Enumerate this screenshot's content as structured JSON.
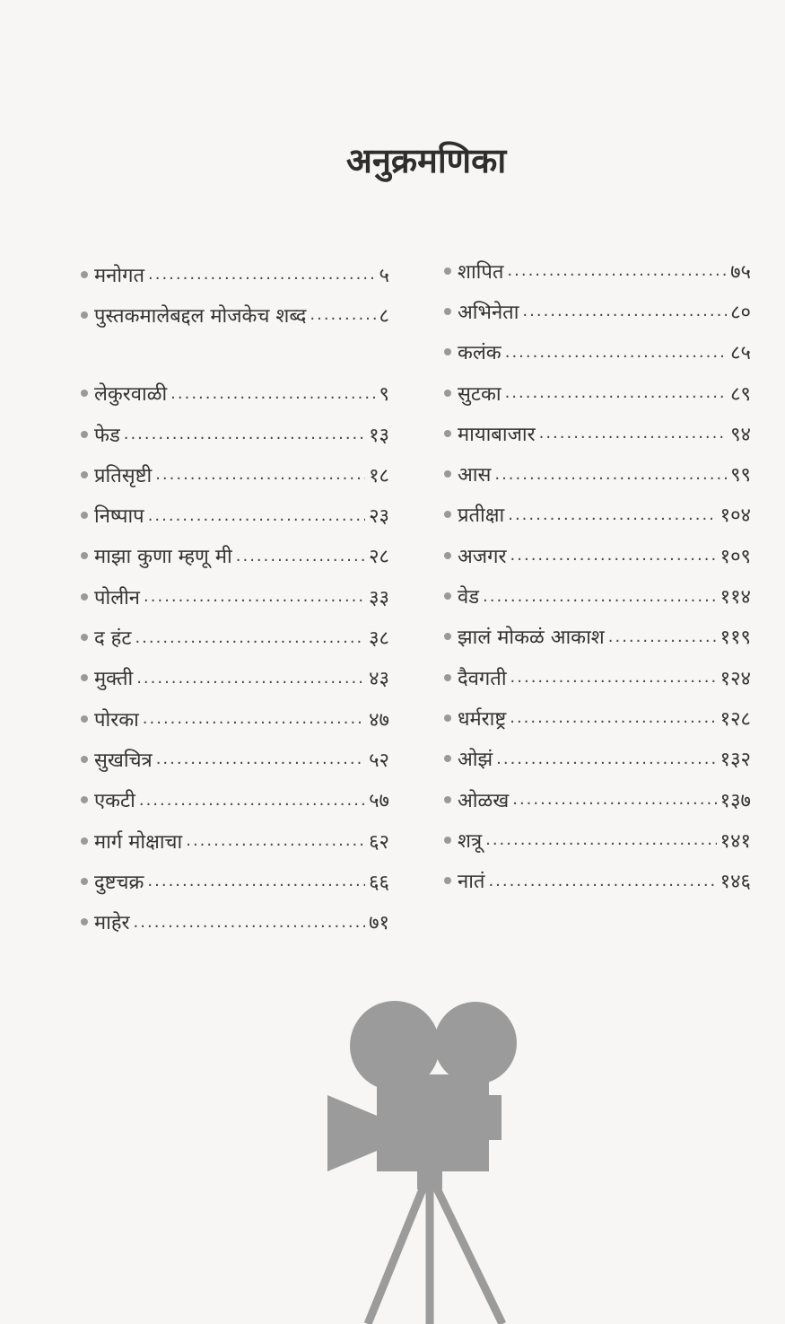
{
  "title": "अनुक्रमणिका",
  "left_column": [
    {
      "label": "मनोगत",
      "page": "५"
    },
    {
      "label": "पुस्तकमालेबद्दल मोजकेच शब्द",
      "page": "८"
    },
    {
      "label": "लेकुरवाळी",
      "page": "९"
    },
    {
      "label": "फेड",
      "page": "१३"
    },
    {
      "label": "प्रतिसृष्टी",
      "page": "१८"
    },
    {
      "label": "निष्पाप",
      "page": "२३"
    },
    {
      "label": "माझा कुणा म्हणू मी",
      "page": "२८"
    },
    {
      "label": "पोलीन",
      "page": "३३"
    },
    {
      "label": "द हंट",
      "page": "३८"
    },
    {
      "label": "मुक्ती",
      "page": "४३"
    },
    {
      "label": "पोरका",
      "page": "४७"
    },
    {
      "label": "सुखचित्र",
      "page": "५२"
    },
    {
      "label": "एकटी",
      "page": "५७"
    },
    {
      "label": "मार्ग मोक्षाचा",
      "page": "६२"
    },
    {
      "label": "दुष्टचक्र",
      "page": "६६"
    },
    {
      "label": "माहेर",
      "page": "७१"
    }
  ],
  "right_column": [
    {
      "label": "शापित",
      "page": "७५"
    },
    {
      "label": "अभिनेता",
      "page": "८०"
    },
    {
      "label": "कलंक",
      "page": "८५"
    },
    {
      "label": "सुटका",
      "page": "८९"
    },
    {
      "label": "मायाबाजार",
      "page": "९४"
    },
    {
      "label": "आस",
      "page": "९९"
    },
    {
      "label": "प्रतीक्षा",
      "page": "१०४"
    },
    {
      "label": "अजगर",
      "page": "१०९"
    },
    {
      "label": "वेड",
      "page": "११४"
    },
    {
      "label": "झालं मोकळं आकाश",
      "page": "११९"
    },
    {
      "label": "दैवगती",
      "page": "१२४"
    },
    {
      "label": "धर्मराष्ट्र",
      "page": "१२८"
    },
    {
      "label": "ओझं",
      "page": "१३२"
    },
    {
      "label": "ओळख",
      "page": "१३७"
    },
    {
      "label": "शत्रू",
      "page": "१४१"
    },
    {
      "label": "नातं",
      "page": "१४६"
    }
  ],
  "illustration": {
    "icon": "movie-camera-on-tripod-icon",
    "color": "#9b9b9b"
  }
}
